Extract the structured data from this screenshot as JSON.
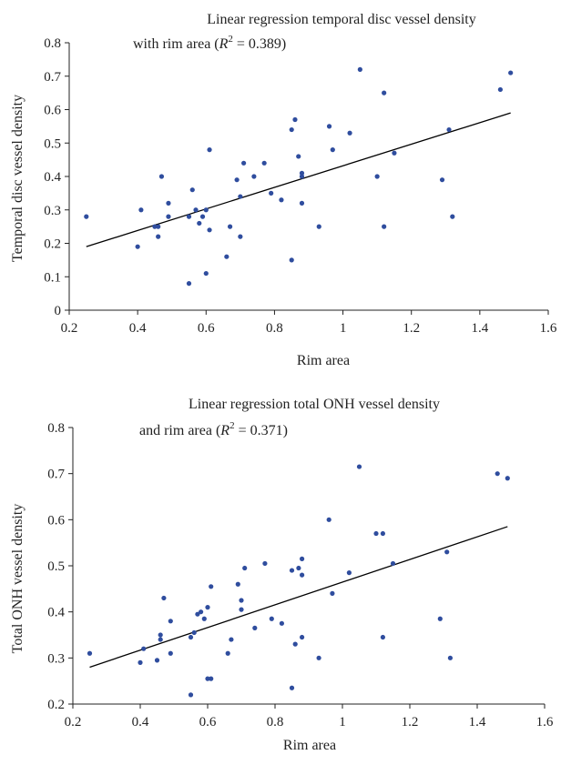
{
  "chart_data": [
    {
      "type": "scatter",
      "title_line1": "Linear regression temporal disc vessel density",
      "title_line2_prefix": "with rim area (",
      "title_r": "R",
      "title_sup": "2",
      "title_value": " = 0.389)",
      "xlabel": "Rim area",
      "ylabel": "Temporal disc vessel density",
      "xlim": [
        0.2,
        1.6
      ],
      "ylim": [
        0,
        0.8
      ],
      "xticks": [
        "0.2",
        "0.4",
        "0.6",
        "0.8",
        "1",
        "1.2",
        "1.4",
        "1.6"
      ],
      "yticks": [
        "0",
        "0.1",
        "0.2",
        "0.3",
        "0.4",
        "0.5",
        "0.6",
        "0.7",
        "0.8"
      ],
      "grid": false,
      "trendline": {
        "x": [
          0.25,
          1.49
        ],
        "y": [
          0.19,
          0.59
        ]
      },
      "points": [
        [
          0.25,
          0.28
        ],
        [
          0.4,
          0.19
        ],
        [
          0.41,
          0.3
        ],
        [
          0.45,
          0.25
        ],
        [
          0.46,
          0.25
        ],
        [
          0.46,
          0.22
        ],
        [
          0.47,
          0.4
        ],
        [
          0.49,
          0.32
        ],
        [
          0.49,
          0.28
        ],
        [
          0.55,
          0.28
        ],
        [
          0.55,
          0.08
        ],
        [
          0.56,
          0.36
        ],
        [
          0.57,
          0.3
        ],
        [
          0.58,
          0.26
        ],
        [
          0.59,
          0.28
        ],
        [
          0.6,
          0.3
        ],
        [
          0.6,
          0.11
        ],
        [
          0.61,
          0.48
        ],
        [
          0.61,
          0.24
        ],
        [
          0.66,
          0.16
        ],
        [
          0.67,
          0.25
        ],
        [
          0.69,
          0.39
        ],
        [
          0.7,
          0.34
        ],
        [
          0.7,
          0.22
        ],
        [
          0.71,
          0.44
        ],
        [
          0.74,
          0.4
        ],
        [
          0.77,
          0.44
        ],
        [
          0.79,
          0.35
        ],
        [
          0.82,
          0.33
        ],
        [
          0.85,
          0.54
        ],
        [
          0.85,
          0.15
        ],
        [
          0.86,
          0.57
        ],
        [
          0.87,
          0.46
        ],
        [
          0.88,
          0.4
        ],
        [
          0.88,
          0.41
        ],
        [
          0.88,
          0.32
        ],
        [
          0.93,
          0.25
        ],
        [
          0.96,
          0.55
        ],
        [
          0.97,
          0.48
        ],
        [
          1.02,
          0.53
        ],
        [
          1.05,
          0.72
        ],
        [
          1.1,
          0.4
        ],
        [
          1.12,
          0.65
        ],
        [
          1.12,
          0.25
        ],
        [
          1.15,
          0.47
        ],
        [
          1.29,
          0.39
        ],
        [
          1.31,
          0.54
        ],
        [
          1.32,
          0.28
        ],
        [
          1.46,
          0.66
        ],
        [
          1.49,
          0.71
        ]
      ]
    },
    {
      "type": "scatter",
      "title_line1": "Linear regression total ONH vessel density",
      "title_line2_prefix": "and rim area (",
      "title_r": "R",
      "title_sup": "2",
      "title_value": " = 0.371)",
      "xlabel": "Rim area",
      "ylabel": "Total ONH vessel density",
      "xlim": [
        0.2,
        1.6
      ],
      "ylim": [
        0.2,
        0.8
      ],
      "xticks": [
        "0.2",
        "0.4",
        "0.6",
        "0.8",
        "1",
        "1.2",
        "1.4",
        "1.6"
      ],
      "yticks": [
        "0.2",
        "0.3",
        "0.4",
        "0.5",
        "0.6",
        "0.7",
        "0.8"
      ],
      "grid": false,
      "trendline": {
        "x": [
          0.25,
          1.49
        ],
        "y": [
          0.28,
          0.585
        ]
      },
      "points": [
        [
          0.25,
          0.31
        ],
        [
          0.4,
          0.29
        ],
        [
          0.41,
          0.32
        ],
        [
          0.45,
          0.295
        ],
        [
          0.46,
          0.35
        ],
        [
          0.46,
          0.34
        ],
        [
          0.47,
          0.43
        ],
        [
          0.49,
          0.38
        ],
        [
          0.49,
          0.31
        ],
        [
          0.55,
          0.345
        ],
        [
          0.55,
          0.22
        ],
        [
          0.56,
          0.355
        ],
        [
          0.57,
          0.395
        ],
        [
          0.58,
          0.4
        ],
        [
          0.59,
          0.385
        ],
        [
          0.6,
          0.41
        ],
        [
          0.6,
          0.255
        ],
        [
          0.61,
          0.455
        ],
        [
          0.61,
          0.255
        ],
        [
          0.66,
          0.31
        ],
        [
          0.67,
          0.34
        ],
        [
          0.69,
          0.46
        ],
        [
          0.7,
          0.425
        ],
        [
          0.7,
          0.405
        ],
        [
          0.71,
          0.495
        ],
        [
          0.74,
          0.365
        ],
        [
          0.77,
          0.505
        ],
        [
          0.79,
          0.385
        ],
        [
          0.82,
          0.375
        ],
        [
          0.85,
          0.49
        ],
        [
          0.85,
          0.235
        ],
        [
          0.86,
          0.33
        ],
        [
          0.87,
          0.495
        ],
        [
          0.88,
          0.515
        ],
        [
          0.88,
          0.48
        ],
        [
          0.88,
          0.345
        ],
        [
          0.93,
          0.3
        ],
        [
          0.96,
          0.6
        ],
        [
          0.97,
          0.44
        ],
        [
          1.02,
          0.485
        ],
        [
          1.05,
          0.715
        ],
        [
          1.1,
          0.57
        ],
        [
          1.12,
          0.57
        ],
        [
          1.12,
          0.345
        ],
        [
          1.15,
          0.505
        ],
        [
          1.29,
          0.385
        ],
        [
          1.31,
          0.53
        ],
        [
          1.32,
          0.3
        ],
        [
          1.46,
          0.7
        ],
        [
          1.49,
          0.69
        ]
      ]
    }
  ],
  "style": {
    "point_color": "#2f4d9e",
    "line_color": "#000000",
    "axis_color": "#222222"
  }
}
